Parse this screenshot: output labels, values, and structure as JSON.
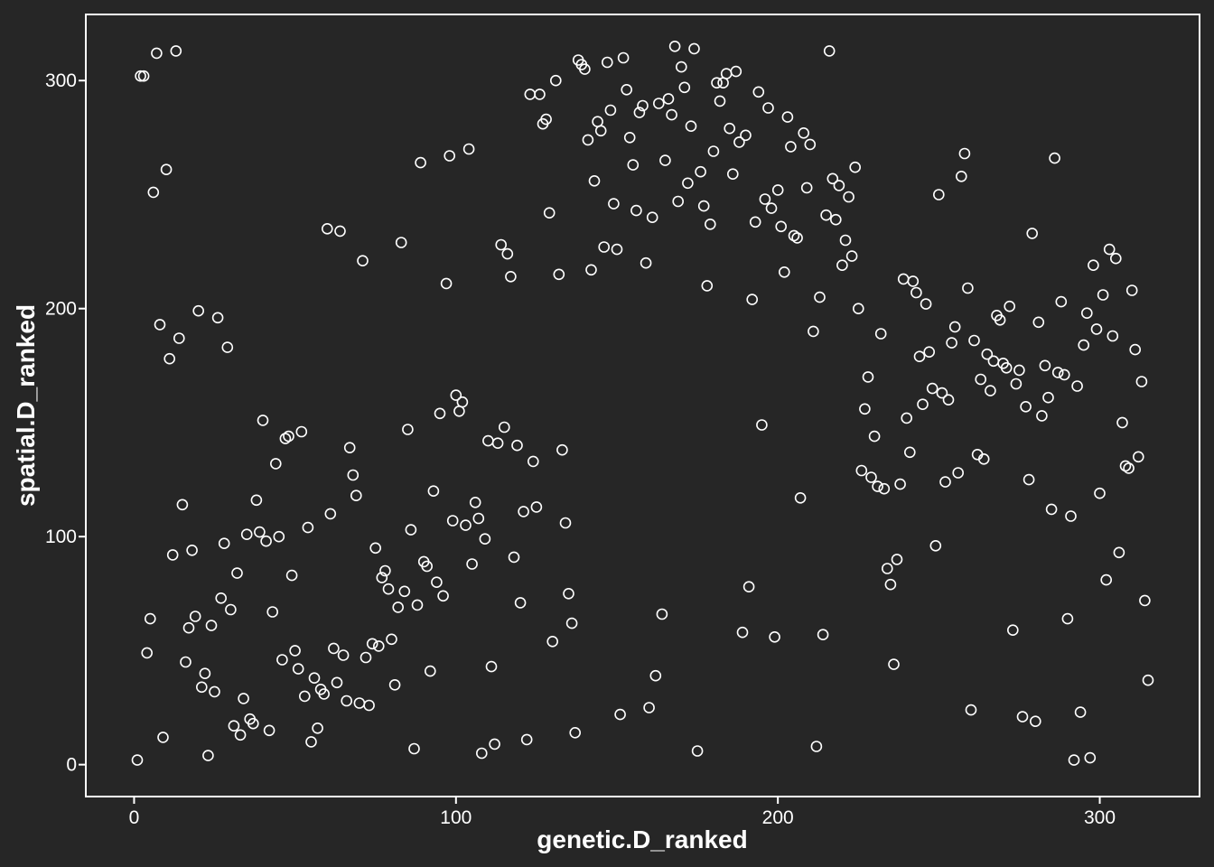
{
  "chart_data": {
    "type": "scatter",
    "xlabel": "genetic.D_ranked",
    "ylabel": "spatial.D_ranked",
    "xlim": [
      -15,
      331
    ],
    "ylim": [
      -14,
      329
    ],
    "xticks": [
      0,
      100,
      200,
      300
    ],
    "yticks": [
      0,
      100,
      200,
      300
    ],
    "xtick_labels": [
      "0",
      "100",
      "200",
      "300"
    ],
    "ytick_labels": [
      "0",
      "100",
      "200",
      "300"
    ],
    "grid": false,
    "legend": "none",
    "colors": {
      "background": "#262626",
      "foreground": "#ffffff"
    },
    "points": [
      [
        1,
        2
      ],
      [
        2,
        302
      ],
      [
        3,
        302
      ],
      [
        4,
        49
      ],
      [
        5,
        64
      ],
      [
        6,
        251
      ],
      [
        7,
        312
      ],
      [
        8,
        193
      ],
      [
        9,
        12
      ],
      [
        10,
        261
      ],
      [
        11,
        178
      ],
      [
        12,
        92
      ],
      [
        13,
        313
      ],
      [
        14,
        187
      ],
      [
        15,
        114
      ],
      [
        16,
        45
      ],
      [
        17,
        60
      ],
      [
        18,
        94
      ],
      [
        19,
        65
      ],
      [
        20,
        199
      ],
      [
        21,
        34
      ],
      [
        22,
        40
      ],
      [
        23,
        4
      ],
      [
        24,
        61
      ],
      [
        25,
        32
      ],
      [
        26,
        196
      ],
      [
        27,
        73
      ],
      [
        28,
        97
      ],
      [
        29,
        183
      ],
      [
        30,
        68
      ],
      [
        31,
        17
      ],
      [
        32,
        84
      ],
      [
        33,
        13
      ],
      [
        34,
        29
      ],
      [
        35,
        101
      ],
      [
        36,
        20
      ],
      [
        37,
        18
      ],
      [
        38,
        116
      ],
      [
        39,
        102
      ],
      [
        40,
        151
      ],
      [
        41,
        98
      ],
      [
        42,
        15
      ],
      [
        43,
        67
      ],
      [
        44,
        132
      ],
      [
        45,
        100
      ],
      [
        46,
        46
      ],
      [
        47,
        143
      ],
      [
        48,
        144
      ],
      [
        49,
        83
      ],
      [
        50,
        50
      ],
      [
        51,
        42
      ],
      [
        52,
        146
      ],
      [
        53,
        30
      ],
      [
        54,
        104
      ],
      [
        55,
        10
      ],
      [
        56,
        38
      ],
      [
        57,
        16
      ],
      [
        58,
        33
      ],
      [
        59,
        31
      ],
      [
        60,
        235
      ],
      [
        61,
        110
      ],
      [
        62,
        51
      ],
      [
        63,
        36
      ],
      [
        64,
        234
      ],
      [
        65,
        48
      ],
      [
        66,
        28
      ],
      [
        67,
        139
      ],
      [
        68,
        127
      ],
      [
        69,
        118
      ],
      [
        70,
        27
      ],
      [
        71,
        221
      ],
      [
        72,
        47
      ],
      [
        73,
        26
      ],
      [
        74,
        53
      ],
      [
        75,
        95
      ],
      [
        76,
        52
      ],
      [
        77,
        82
      ],
      [
        78,
        85
      ],
      [
        79,
        77
      ],
      [
        80,
        55
      ],
      [
        81,
        35
      ],
      [
        82,
        69
      ],
      [
        83,
        229
      ],
      [
        84,
        76
      ],
      [
        85,
        147
      ],
      [
        86,
        103
      ],
      [
        87,
        7
      ],
      [
        88,
        70
      ],
      [
        89,
        264
      ],
      [
        90,
        89
      ],
      [
        91,
        87
      ],
      [
        92,
        41
      ],
      [
        93,
        120
      ],
      [
        94,
        80
      ],
      [
        95,
        154
      ],
      [
        96,
        74
      ],
      [
        97,
        211
      ],
      [
        98,
        267
      ],
      [
        99,
        107
      ],
      [
        100,
        162
      ],
      [
        101,
        155
      ],
      [
        102,
        159
      ],
      [
        103,
        105
      ],
      [
        104,
        270
      ],
      [
        105,
        88
      ],
      [
        106,
        115
      ],
      [
        107,
        108
      ],
      [
        108,
        5
      ],
      [
        109,
        99
      ],
      [
        110,
        142
      ],
      [
        111,
        43
      ],
      [
        112,
        9
      ],
      [
        113,
        141
      ],
      [
        114,
        228
      ],
      [
        115,
        148
      ],
      [
        116,
        224
      ],
      [
        117,
        214
      ],
      [
        118,
        91
      ],
      [
        119,
        140
      ],
      [
        120,
        71
      ],
      [
        121,
        111
      ],
      [
        122,
        11
      ],
      [
        123,
        294
      ],
      [
        124,
        133
      ],
      [
        125,
        113
      ],
      [
        126,
        294
      ],
      [
        127,
        281
      ],
      [
        128,
        283
      ],
      [
        129,
        242
      ],
      [
        130,
        54
      ],
      [
        131,
        300
      ],
      [
        132,
        215
      ],
      [
        133,
        138
      ],
      [
        134,
        106
      ],
      [
        135,
        75
      ],
      [
        136,
        62
      ],
      [
        137,
        14
      ],
      [
        138,
        309
      ],
      [
        139,
        307
      ],
      [
        140,
        305
      ],
      [
        141,
        274
      ],
      [
        142,
        217
      ],
      [
        143,
        256
      ],
      [
        144,
        282
      ],
      [
        145,
        278
      ],
      [
        146,
        227
      ],
      [
        147,
        308
      ],
      [
        148,
        287
      ],
      [
        149,
        246
      ],
      [
        150,
        226
      ],
      [
        151,
        22
      ],
      [
        152,
        310
      ],
      [
        153,
        296
      ],
      [
        154,
        275
      ],
      [
        155,
        263
      ],
      [
        156,
        243
      ],
      [
        157,
        286
      ],
      [
        158,
        289
      ],
      [
        159,
        220
      ],
      [
        160,
        25
      ],
      [
        161,
        240
      ],
      [
        162,
        39
      ],
      [
        163,
        290
      ],
      [
        164,
        66
      ],
      [
        165,
        265
      ],
      [
        166,
        292
      ],
      [
        167,
        285
      ],
      [
        168,
        315
      ],
      [
        169,
        247
      ],
      [
        170,
        306
      ],
      [
        171,
        297
      ],
      [
        172,
        255
      ],
      [
        173,
        280
      ],
      [
        174,
        314
      ],
      [
        175,
        6
      ],
      [
        176,
        260
      ],
      [
        177,
        245
      ],
      [
        178,
        210
      ],
      [
        179,
        237
      ],
      [
        180,
        269
      ],
      [
        181,
        299
      ],
      [
        182,
        291
      ],
      [
        183,
        299
      ],
      [
        184,
        303
      ],
      [
        185,
        279
      ],
      [
        186,
        259
      ],
      [
        187,
        304
      ],
      [
        188,
        273
      ],
      [
        189,
        58
      ],
      [
        190,
        276
      ],
      [
        191,
        78
      ],
      [
        192,
        204
      ],
      [
        193,
        238
      ],
      [
        194,
        295
      ],
      [
        195,
        149
      ],
      [
        196,
        248
      ],
      [
        197,
        288
      ],
      [
        198,
        244
      ],
      [
        199,
        56
      ],
      [
        200,
        252
      ],
      [
        201,
        236
      ],
      [
        202,
        216
      ],
      [
        203,
        284
      ],
      [
        204,
        271
      ],
      [
        205,
        232
      ],
      [
        206,
        231
      ],
      [
        207,
        117
      ],
      [
        208,
        277
      ],
      [
        209,
        253
      ],
      [
        210,
        272
      ],
      [
        211,
        190
      ],
      [
        212,
        8
      ],
      [
        213,
        205
      ],
      [
        214,
        57
      ],
      [
        215,
        241
      ],
      [
        216,
        313
      ],
      [
        217,
        257
      ],
      [
        218,
        239
      ],
      [
        219,
        254
      ],
      [
        220,
        219
      ],
      [
        221,
        230
      ],
      [
        222,
        249
      ],
      [
        223,
        223
      ],
      [
        224,
        262
      ],
      [
        225,
        200
      ],
      [
        226,
        129
      ],
      [
        227,
        156
      ],
      [
        228,
        170
      ],
      [
        229,
        126
      ],
      [
        230,
        144
      ],
      [
        231,
        122
      ],
      [
        232,
        189
      ],
      [
        233,
        121
      ],
      [
        234,
        86
      ],
      [
        235,
        79
      ],
      [
        236,
        44
      ],
      [
        237,
        90
      ],
      [
        238,
        123
      ],
      [
        239,
        213
      ],
      [
        240,
        152
      ],
      [
        241,
        137
      ],
      [
        242,
        212
      ],
      [
        243,
        207
      ],
      [
        244,
        179
      ],
      [
        245,
        158
      ],
      [
        246,
        202
      ],
      [
        247,
        181
      ],
      [
        248,
        165
      ],
      [
        249,
        96
      ],
      [
        250,
        250
      ],
      [
        251,
        163
      ],
      [
        252,
        124
      ],
      [
        253,
        160
      ],
      [
        254,
        185
      ],
      [
        255,
        192
      ],
      [
        256,
        128
      ],
      [
        257,
        258
      ],
      [
        258,
        268
      ],
      [
        259,
        209
      ],
      [
        260,
        24
      ],
      [
        261,
        186
      ],
      [
        262,
        136
      ],
      [
        263,
        169
      ],
      [
        264,
        134
      ],
      [
        265,
        180
      ],
      [
        266,
        164
      ],
      [
        267,
        177
      ],
      [
        268,
        197
      ],
      [
        269,
        195
      ],
      [
        270,
        176
      ],
      [
        271,
        174
      ],
      [
        272,
        201
      ],
      [
        273,
        59
      ],
      [
        274,
        167
      ],
      [
        275,
        173
      ],
      [
        276,
        21
      ],
      [
        277,
        157
      ],
      [
        278,
        125
      ],
      [
        279,
        233
      ],
      [
        280,
        19
      ],
      [
        281,
        194
      ],
      [
        282,
        153
      ],
      [
        283,
        175
      ],
      [
        284,
        161
      ],
      [
        285,
        112
      ],
      [
        286,
        266
      ],
      [
        287,
        172
      ],
      [
        288,
        203
      ],
      [
        289,
        171
      ],
      [
        290,
        64
      ],
      [
        291,
        109
      ],
      [
        292,
        2
      ],
      [
        293,
        166
      ],
      [
        294,
        23
      ],
      [
        295,
        184
      ],
      [
        296,
        198
      ],
      [
        297,
        3
      ],
      [
        298,
        219
      ],
      [
        299,
        191
      ],
      [
        300,
        119
      ],
      [
        301,
        206
      ],
      [
        302,
        81
      ],
      [
        303,
        226
      ],
      [
        304,
        188
      ],
      [
        305,
        222
      ],
      [
        306,
        93
      ],
      [
        307,
        150
      ],
      [
        308,
        131
      ],
      [
        309,
        130
      ],
      [
        310,
        208
      ],
      [
        311,
        182
      ],
      [
        312,
        135
      ],
      [
        313,
        168
      ],
      [
        314,
        72
      ],
      [
        315,
        37
      ]
    ]
  }
}
